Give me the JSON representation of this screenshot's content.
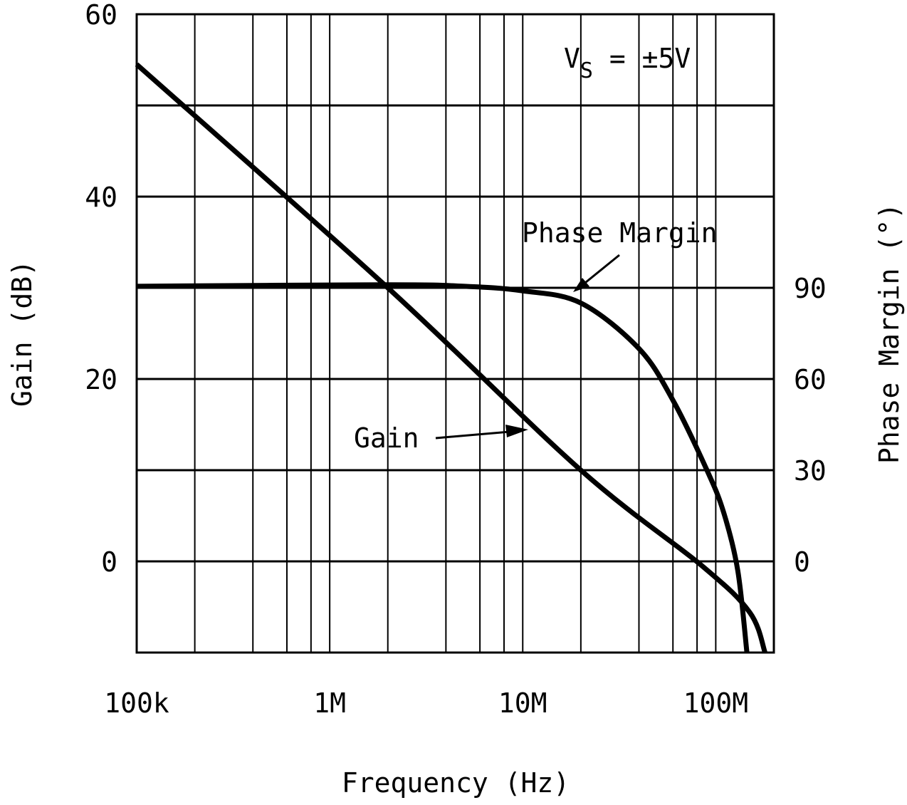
{
  "chart_data": {
    "type": "line",
    "xlabel": "Frequency (Hz)",
    "ylabel": "Gain (dB)",
    "y2label": "Phase Margin (°)",
    "xscale": "log",
    "xlim": [
      100000,
      200000000
    ],
    "ylim": [
      -10,
      60
    ],
    "y2lim": [
      -30,
      180
    ],
    "grid": true,
    "x_ticks": [
      {
        "value": 100000,
        "label": "100k"
      },
      {
        "value": 1000000,
        "label": "1M"
      },
      {
        "value": 10000000,
        "label": "10M"
      },
      {
        "value": 100000000,
        "label": "100M"
      }
    ],
    "y_ticks": [
      {
        "value": 0,
        "label": "0"
      },
      {
        "value": 20,
        "label": "20"
      },
      {
        "value": 40,
        "label": "40"
      },
      {
        "value": 60,
        "label": "60"
      }
    ],
    "y2_ticks": [
      {
        "value": 0,
        "label": "0"
      },
      {
        "value": 30,
        "label": "30"
      },
      {
        "value": 60,
        "label": "60"
      },
      {
        "value": 90,
        "label": "90"
      }
    ],
    "annotation": {
      "text": "V",
      "sub": "S",
      "rest": " = ±5V"
    },
    "series": [
      {
        "name": "Gain",
        "axis": "left",
        "x": [
          100000,
          2000000,
          20000000,
          85000000,
          150000000,
          180000000
        ],
        "y": [
          54.5,
          30,
          10,
          -0.5,
          -5.6,
          -10
        ]
      },
      {
        "name": "Phase Margin",
        "axis": "right",
        "x": [
          100000,
          2000000,
          5000000,
          10000000,
          20000000,
          40000000,
          60000000,
          90000000,
          110000000,
          130000000,
          145000000
        ],
        "y": [
          90.5,
          91,
          90.5,
          89,
          85,
          70,
          53,
          30,
          16,
          -3,
          -30
        ]
      }
    ]
  }
}
